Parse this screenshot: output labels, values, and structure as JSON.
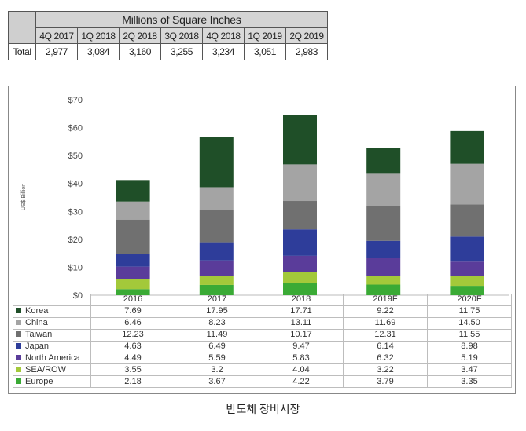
{
  "top_table": {
    "header": "Millions of Square Inches",
    "quarters": [
      "4Q 2017",
      "1Q 2018",
      "2Q 2018",
      "3Q 2018",
      "4Q 2018",
      "1Q 2019",
      "2Q 2019"
    ],
    "row_label": "Total",
    "values": [
      "2,977",
      "3,084",
      "3,160",
      "3,255",
      "3,234",
      "3,051",
      "2,983"
    ]
  },
  "chart_data": {
    "type": "bar",
    "stacked": true,
    "categories": [
      "2016",
      "2017",
      "2018",
      "2019F",
      "2020F"
    ],
    "ylabel": "US$ Billion",
    "ylim": [
      0,
      70
    ],
    "yticks": [
      "$0",
      "$10",
      "$20",
      "$30",
      "$40",
      "$50",
      "$60",
      "$70"
    ],
    "series": [
      {
        "name": "Europe",
        "color": "#3aaa35",
        "values": [
          2.18,
          3.67,
          4.22,
          3.79,
          3.35
        ],
        "labels": [
          "2.18",
          "3.67",
          "4.22",
          "3.79",
          "3.35"
        ]
      },
      {
        "name": "SEA/ROW",
        "color": "#a3c93a",
        "values": [
          3.55,
          3.2,
          4.04,
          3.22,
          3.47
        ],
        "labels": [
          "3.55",
          "3.2",
          "4.04",
          "3.22",
          "3.47"
        ]
      },
      {
        "name": "North America",
        "color": "#5a3c9a",
        "values": [
          4.49,
          5.59,
          5.83,
          6.32,
          5.19
        ],
        "labels": [
          "4.49",
          "5.59",
          "5.83",
          "6.32",
          "5.19"
        ]
      },
      {
        "name": "Japan",
        "color": "#2e3d9a",
        "values": [
          4.63,
          6.49,
          9.47,
          6.14,
          8.98
        ],
        "labels": [
          "4.63",
          "6.49",
          "9.47",
          "6.14",
          "8.98"
        ]
      },
      {
        "name": "Taiwan",
        "color": "#707070",
        "values": [
          12.23,
          11.49,
          10.17,
          12.31,
          11.55
        ],
        "labels": [
          "12.23",
          "11.49",
          "10.17",
          "12.31",
          "11.55"
        ]
      },
      {
        "name": "China",
        "color": "#a4a4a4",
        "values": [
          6.46,
          8.23,
          13.11,
          11.69,
          14.5
        ],
        "labels": [
          "6.46",
          "8.23",
          "13.11",
          "11.69",
          "14.50"
        ]
      },
      {
        "name": "Korea",
        "color": "#1f4f28",
        "values": [
          7.69,
          17.95,
          17.71,
          9.22,
          11.75
        ],
        "labels": [
          "7.69",
          "17.95",
          "17.71",
          "9.22",
          "11.75"
        ]
      }
    ]
  },
  "caption": "반도체 장비시장"
}
